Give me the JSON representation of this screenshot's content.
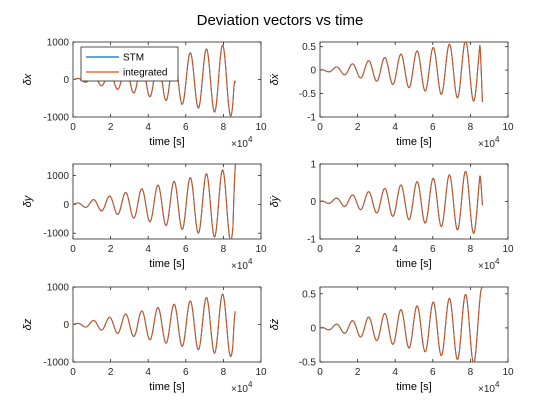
{
  "figure_title": "Deviation vectors vs time",
  "x_exponent_base": "×10",
  "x_exponent_power": "4",
  "colors": {
    "stm": "#0072bd",
    "integrated": "#d95319",
    "axis": "#262626",
    "box": "#262626"
  },
  "legend": {
    "entries": [
      "STM",
      "integrated"
    ],
    "placement": "top-left",
    "panel": 0
  },
  "chart_data": [
    {
      "type": "line",
      "xlabel": "time [s]",
      "ylabel": "δx",
      "xlim": [
        0,
        10
      ],
      "ylim": [
        -1000,
        1000
      ],
      "yticks": [
        "1000",
        "0",
        "-1000"
      ],
      "xticks": [
        "0",
        "2",
        "4",
        "6",
        "8",
        "10"
      ],
      "x_scale_note": "x values in units of 1e4 s",
      "series": [
        {
          "name": "STM",
          "x_range": [
            0,
            8.64
          ],
          "period": 0.86,
          "amplitude_end": 1000,
          "amplitude_start": 5,
          "phase": "sin",
          "final": -80
        },
        {
          "name": "integrated",
          "x_range": [
            0,
            8.64
          ],
          "period": 0.86,
          "amplitude_end": 1000,
          "amplitude_start": 5,
          "phase": "sin",
          "final": -80
        }
      ]
    },
    {
      "type": "line",
      "xlabel": "time [s]",
      "ylabel": "δẋ",
      "xlim": [
        0,
        10
      ],
      "ylim": [
        -1,
        0.6
      ],
      "yticks": [
        "0.5",
        "0",
        "-0.5",
        "-1"
      ],
      "xticks": [
        "0",
        "2",
        "4",
        "6",
        "8",
        "10"
      ],
      "series": [
        {
          "name": "STM",
          "x_range": [
            0,
            8.64
          ],
          "period": 0.86,
          "amplitude_end": 0.7,
          "amplitude_start": 0.005,
          "phase": "cos",
          "final": -0.68
        },
        {
          "name": "integrated",
          "x_range": [
            0,
            8.64
          ],
          "period": 0.86,
          "amplitude_end": 0.7,
          "amplitude_start": 0.005,
          "phase": "cos",
          "final": -0.68
        }
      ]
    },
    {
      "type": "line",
      "xlabel": "time [s]",
      "ylabel": "δy",
      "xlim": [
        0,
        10
      ],
      "ylim": [
        -1200,
        1400
      ],
      "yticks": [
        "1000",
        "0",
        "-1000"
      ],
      "xticks": [
        "0",
        "2",
        "4",
        "6",
        "8",
        "10"
      ],
      "series": [
        {
          "name": "STM",
          "x_range": [
            0,
            8.64
          ],
          "period": 0.86,
          "amplitude_end": 1300,
          "amplitude_start": 20,
          "phase": "sin",
          "final": 1380
        },
        {
          "name": "integrated",
          "x_range": [
            0,
            8.64
          ],
          "period": 0.86,
          "amplitude_end": 1300,
          "amplitude_start": 20,
          "phase": "sin",
          "final": 1380
        }
      ]
    },
    {
      "type": "line",
      "xlabel": "time [s]",
      "ylabel": "δẏ",
      "xlim": [
        0,
        10
      ],
      "ylim": [
        -1,
        1
      ],
      "yticks": [
        "1",
        "0",
        "-1"
      ],
      "xticks": [
        "0",
        "2",
        "4",
        "6",
        "8",
        "10"
      ],
      "series": [
        {
          "name": "STM",
          "x_range": [
            0,
            8.64
          ],
          "period": 0.86,
          "amplitude_end": 0.9,
          "amplitude_start": 0.01,
          "phase": "cos",
          "final": -0.1
        },
        {
          "name": "integrated",
          "x_range": [
            0,
            8.64
          ],
          "period": 0.86,
          "amplitude_end": 0.9,
          "amplitude_start": 0.01,
          "phase": "cos",
          "final": -0.1
        }
      ]
    },
    {
      "type": "line",
      "xlabel": "time [s]",
      "ylabel": "δz",
      "xlim": [
        0,
        10
      ],
      "ylim": [
        -1000,
        1000
      ],
      "yticks": [
        "1000",
        "0",
        "-1000"
      ],
      "xticks": [
        "0",
        "2",
        "4",
        "6",
        "8",
        "10"
      ],
      "series": [
        {
          "name": "STM",
          "x_range": [
            0,
            8.64
          ],
          "period": 0.86,
          "amplitude_end": 880,
          "amplitude_start": 10,
          "phase": "sin",
          "final": 350
        },
        {
          "name": "integrated",
          "x_range": [
            0,
            8.64
          ],
          "period": 0.86,
          "amplitude_end": 880,
          "amplitude_start": 10,
          "phase": "sin",
          "final": 350
        }
      ]
    },
    {
      "type": "line",
      "xlabel": "time [s]",
      "ylabel": "δż",
      "xlim": [
        0,
        10
      ],
      "ylim": [
        -0.5,
        0.6
      ],
      "yticks": [
        "0.5",
        "0",
        "-0.5"
      ],
      "xticks": [
        "0",
        "2",
        "4",
        "6",
        "8",
        "10"
      ],
      "series": [
        {
          "name": "STM",
          "x_range": [
            0,
            8.64
          ],
          "period": 0.86,
          "amplitude_end": 0.55,
          "amplitude_start": 0.005,
          "phase": "cos",
          "final": 0.6
        },
        {
          "name": "integrated",
          "x_range": [
            0,
            8.64
          ],
          "period": 0.86,
          "amplitude_end": 0.55,
          "amplitude_start": 0.005,
          "phase": "cos",
          "final": 0.6
        }
      ]
    }
  ]
}
